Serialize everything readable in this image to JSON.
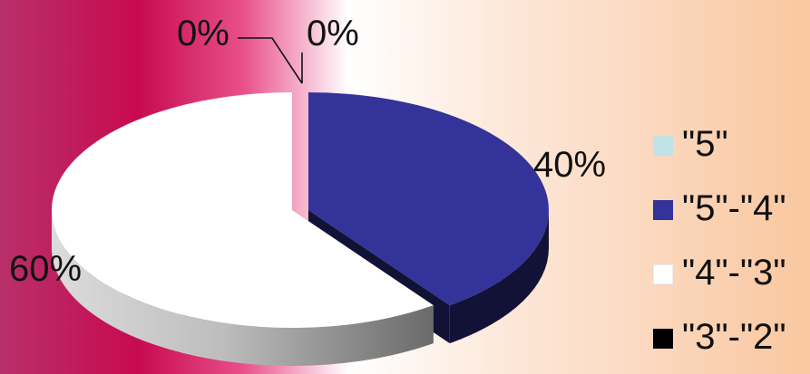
{
  "chart_data": {
    "type": "pie",
    "title": "",
    "categories": [
      "\"5\"",
      "\"5\"-\"4\"",
      "\"4\"-\"3\"",
      "\"3\"-\"2\""
    ],
    "values": [
      0,
      40,
      60,
      0
    ],
    "data_labels": [
      "0%",
      "40%",
      "60%",
      "0%"
    ],
    "colors": [
      "#bfe3e6",
      "#333399",
      "#ffffff",
      "#000000"
    ],
    "legend_position": "right",
    "3d": true
  }
}
